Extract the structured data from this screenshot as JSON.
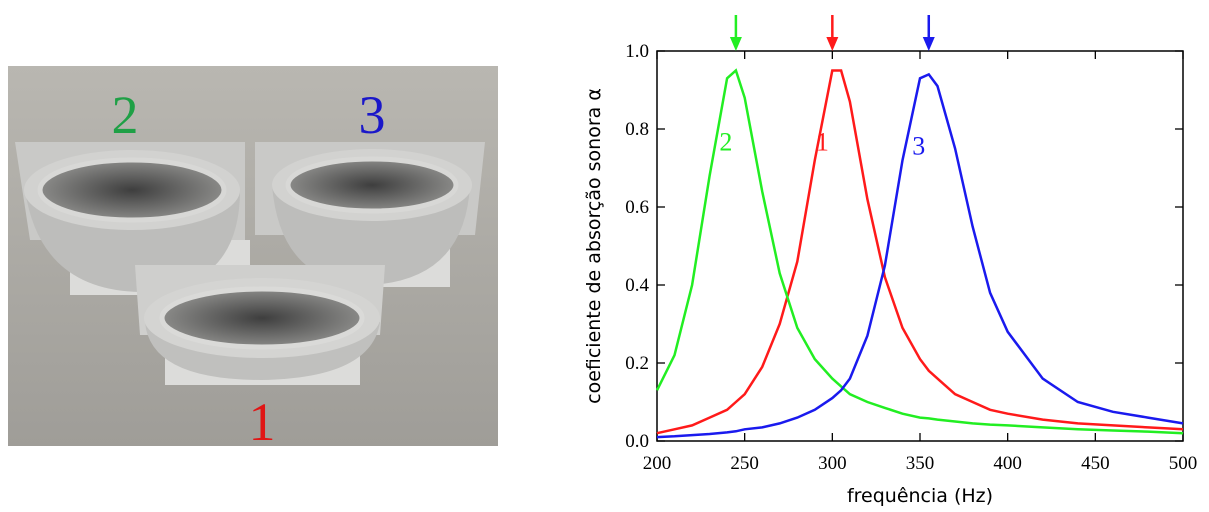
{
  "photo": {
    "labels": [
      "2",
      "3",
      "1"
    ],
    "colors": [
      "#1fa046",
      "#1a17c9",
      "#e01515"
    ]
  },
  "chart_data": {
    "type": "line",
    "x_label": "frequência (Hz)",
    "y_label": "coeficiente de absorção sonora α",
    "x": [
      200,
      210,
      220,
      230,
      240,
      245,
      250,
      260,
      270,
      280,
      290,
      300,
      305,
      310,
      320,
      330,
      340,
      350,
      355,
      360,
      370,
      380,
      390,
      400,
      420,
      440,
      460,
      480,
      500
    ],
    "series": [
      {
        "name": "1",
        "color": "#ff1a1a",
        "values": [
          0.02,
          0.03,
          0.04,
          0.06,
          0.08,
          0.1,
          0.12,
          0.19,
          0.3,
          0.46,
          0.72,
          0.95,
          0.95,
          0.87,
          0.62,
          0.42,
          0.29,
          0.21,
          0.18,
          0.16,
          0.12,
          0.1,
          0.08,
          0.07,
          0.055,
          0.045,
          0.04,
          0.035,
          0.03
        ]
      },
      {
        "name": "2",
        "color": "#22ee22",
        "values": [
          0.13,
          0.22,
          0.4,
          0.68,
          0.93,
          0.95,
          0.88,
          0.64,
          0.43,
          0.29,
          0.21,
          0.16,
          0.14,
          0.12,
          0.1,
          0.085,
          0.07,
          0.06,
          0.058,
          0.055,
          0.05,
          0.045,
          0.042,
          0.04,
          0.035,
          0.03,
          0.027,
          0.024,
          0.02
        ]
      },
      {
        "name": "3",
        "color": "#1a1aee",
        "values": [
          0.01,
          0.012,
          0.015,
          0.018,
          0.022,
          0.025,
          0.03,
          0.035,
          0.045,
          0.06,
          0.08,
          0.11,
          0.13,
          0.16,
          0.27,
          0.45,
          0.72,
          0.93,
          0.94,
          0.91,
          0.75,
          0.55,
          0.38,
          0.28,
          0.16,
          0.1,
          0.075,
          0.06,
          0.045
        ]
      }
    ],
    "xlim": [
      200,
      500
    ],
    "xticks": [
      200,
      250,
      300,
      350,
      400,
      450,
      500
    ],
    "ylim": [
      0,
      1
    ],
    "yticks": [
      {
        "value": 0,
        "label": "0.0"
      },
      0.2,
      0.4,
      0.6,
      0.8,
      {
        "value": 1,
        "label": "1.0"
      }
    ]
  }
}
